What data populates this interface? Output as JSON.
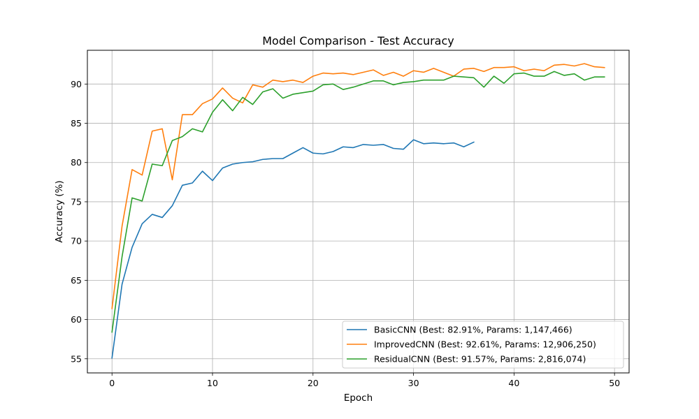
{
  "chart_data": {
    "type": "line",
    "title": "Model Comparison - Test Accuracy",
    "xlabel": "Epoch",
    "ylabel": "Accuracy (%)",
    "xlim": [
      -2.45,
      51.45
    ],
    "ylim": [
      53.2,
      94.3
    ],
    "xticks": [
      0,
      10,
      20,
      30,
      40,
      50
    ],
    "yticks": [
      55,
      60,
      65,
      70,
      75,
      80,
      85,
      90
    ],
    "grid": true,
    "legend_position": "lower-right",
    "series": [
      {
        "name": "BasicCNN (Best: 82.91%, Params: 1,147,466)",
        "color": "#1f77b4",
        "x": [
          0,
          1,
          2,
          3,
          4,
          5,
          6,
          7,
          8,
          9,
          10,
          11,
          12,
          13,
          14,
          15,
          16,
          17,
          18,
          19,
          20,
          21,
          22,
          23,
          24,
          25,
          26,
          27,
          28,
          29,
          30,
          31,
          32,
          33,
          34,
          35,
          36
        ],
        "y": [
          55.1,
          64.5,
          69.2,
          72.2,
          73.4,
          73.0,
          74.5,
          77.1,
          77.4,
          78.9,
          77.7,
          79.3,
          79.8,
          80.0,
          80.1,
          80.4,
          80.5,
          80.5,
          81.2,
          81.9,
          81.2,
          81.1,
          81.4,
          82.0,
          81.9,
          82.3,
          82.2,
          82.3,
          81.8,
          81.7,
          82.9,
          82.4,
          82.5,
          82.4,
          82.5,
          82.0,
          82.6
        ]
      },
      {
        "name": "ImprovedCNN (Best: 92.61%, Params: 12,906,250)",
        "color": "#ff7f0e",
        "x": [
          0,
          1,
          2,
          3,
          4,
          5,
          6,
          7,
          8,
          9,
          10,
          11,
          12,
          13,
          14,
          15,
          16,
          17,
          18,
          19,
          20,
          21,
          22,
          23,
          24,
          25,
          26,
          27,
          28,
          29,
          30,
          31,
          32,
          33,
          34,
          35,
          36,
          37,
          38,
          39,
          40,
          41,
          42,
          43,
          44,
          45,
          46,
          47,
          48,
          49
        ],
        "y": [
          61.4,
          71.9,
          79.1,
          78.4,
          84.0,
          84.3,
          77.8,
          86.1,
          86.1,
          87.5,
          88.1,
          89.5,
          88.2,
          87.6,
          89.9,
          89.6,
          90.5,
          90.3,
          90.5,
          90.2,
          91.0,
          91.4,
          91.3,
          91.4,
          91.2,
          91.5,
          91.8,
          91.1,
          91.5,
          91.0,
          91.7,
          91.5,
          92.0,
          91.5,
          91.0,
          91.9,
          92.0,
          91.6,
          92.1,
          92.1,
          92.2,
          91.7,
          91.9,
          91.7,
          92.4,
          92.5,
          92.3,
          92.6,
          92.2,
          92.1
        ]
      },
      {
        "name": "ResidualCNN (Best: 91.57%, Params: 2,816,074)",
        "color": "#2ca02c",
        "x": [
          0,
          1,
          2,
          3,
          4,
          5,
          6,
          7,
          8,
          9,
          10,
          11,
          12,
          13,
          14,
          15,
          16,
          17,
          18,
          19,
          20,
          21,
          22,
          23,
          24,
          25,
          26,
          27,
          28,
          29,
          30,
          31,
          32,
          33,
          34,
          35,
          36,
          37,
          38,
          39,
          40,
          41,
          42,
          43,
          44,
          45,
          46,
          47,
          48,
          49
        ],
        "y": [
          58.4,
          68.0,
          75.5,
          75.1,
          79.8,
          79.6,
          82.8,
          83.3,
          84.3,
          83.9,
          86.4,
          88.0,
          86.6,
          88.3,
          87.4,
          89.0,
          89.4,
          88.2,
          88.7,
          88.9,
          89.1,
          89.9,
          90.0,
          89.3,
          89.6,
          90.0,
          90.4,
          90.4,
          89.9,
          90.2,
          90.3,
          90.5,
          90.5,
          90.5,
          91.0,
          90.9,
          90.8,
          89.6,
          91.0,
          90.1,
          91.3,
          91.4,
          91.0,
          91.0,
          91.6,
          91.1,
          91.3,
          90.5,
          90.9,
          90.9
        ]
      }
    ]
  }
}
